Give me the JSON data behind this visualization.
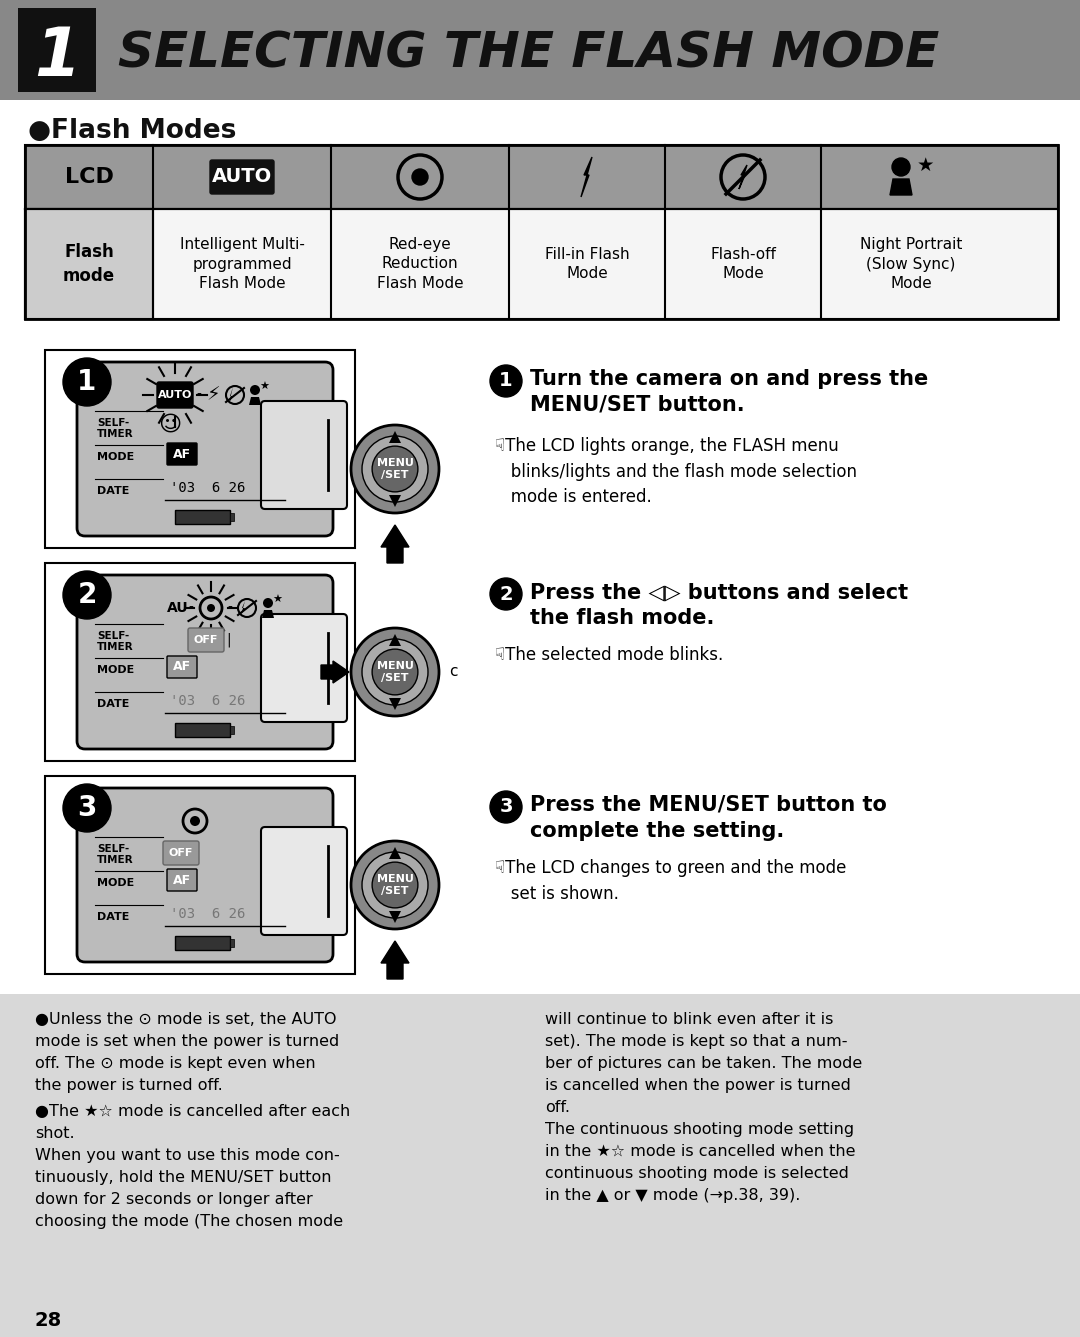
{
  "title_number": "1",
  "title_text": "SELECTING THE FLASH MODE",
  "title_bg": "#888888",
  "title_num_bg": "#111111",
  "page_bg": "#ffffff",
  "section_title": "●Flash Modes",
  "table_header_bg": "#999999",
  "table_row2_bg": "#cccccc",
  "table_row2_bg2": "#f5f5f5",
  "table_row2": [
    "Flash\nmode",
    "Intelligent Multi-\nprogrammed\nFlash Mode",
    "Red-eye\nReduction\nFlash Mode",
    "Fill-in Flash\nMode",
    "Flash-off\nMode",
    "Night Portrait\n(Slow Sync)\nMode"
  ],
  "step1_title": "Turn the camera on and press the\nMENU/SET button.",
  "step1_note": "☟The LCD lights orange, the FLASH menu\n   blinks/lights and the flash mode selection\n   mode is entered.",
  "step2_title": "Press the ◁▷ buttons and select\nthe flash mode.",
  "step2_note": "☟The selected mode blinks.",
  "step3_title": "Press the MENU/SET button to\ncomplete the setting.",
  "step3_note": "☟The LCD changes to green and the mode\n   set is shown.",
  "bottom_note1": "●Unless the ⊙ mode is set, the AUTO\nmode is set when the power is turned\noff. The ⊙ mode is kept even when\nthe power is turned off.",
  "bottom_note2": "●The ★☆ mode is cancelled after each\nshot.\nWhen you want to use this mode con-\ntinuously, hold the MENU/SET button\ndown for 2 seconds or longer after\nchoosing the mode (The chosen mode",
  "bottom_note3": "will continue to blink even after it is\nset). The mode is kept so that a num-\nber of pictures can be taken. The mode\nis cancelled when the power is turned\noff.\nThe continuous shooting mode setting\nin the ★☆ mode is cancelled when the\ncontinuous shooting mode is selected\nin the ▲ or ▼ mode (→p.38, 39).",
  "page_number": "28",
  "bottom_bg": "#d8d8d8",
  "camera_bg": "#bbbbbb",
  "camera_inner_bg": "#cccccc"
}
